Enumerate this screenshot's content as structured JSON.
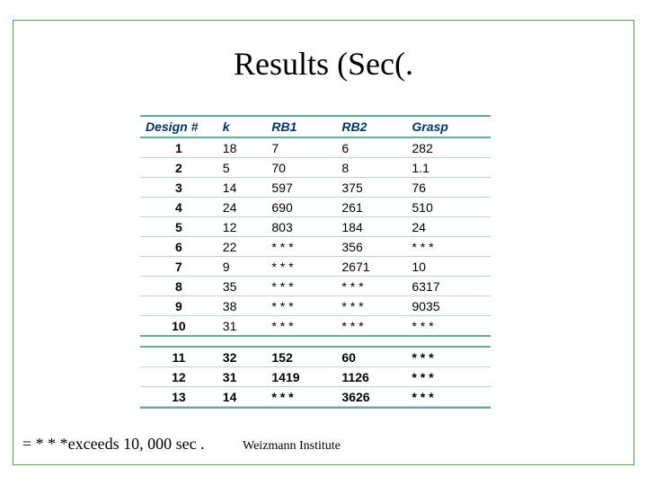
{
  "title": "Results (Sec(.",
  "footnote": "= * * *exceeds 10, 000 sec .",
  "affiliation": "Weizmann Institute",
  "table": {
    "headers": [
      "Design #",
      "k",
      "RB1",
      "RB2",
      "Grasp"
    ],
    "rows_top": [
      [
        "1",
        "18",
        "7",
        "6",
        "282"
      ],
      [
        "2",
        "5",
        "70",
        "8",
        "1.1"
      ],
      [
        "3",
        "14",
        "597",
        "375",
        "76"
      ],
      [
        "4",
        "24",
        "690",
        "261",
        "510"
      ],
      [
        "5",
        "12",
        "803",
        "184",
        "24"
      ],
      [
        "6",
        "22",
        "* * *",
        "356",
        "* * *"
      ],
      [
        "7",
        "9",
        "* * *",
        "2671",
        "10"
      ],
      [
        "8",
        "35",
        "* * *",
        "* * *",
        "6317"
      ],
      [
        "9",
        "38",
        "* * *",
        "* * *",
        "9035"
      ],
      [
        "10",
        "31",
        "* * *",
        "* * *",
        "* * *"
      ]
    ],
    "rows_bottom": [
      [
        "11",
        "32",
        "152",
        "60",
        "* * *"
      ],
      [
        "12",
        "31",
        "1419",
        "1126",
        "* * *"
      ],
      [
        "13",
        "14",
        "* * *",
        "3626",
        "* * *"
      ]
    ]
  }
}
